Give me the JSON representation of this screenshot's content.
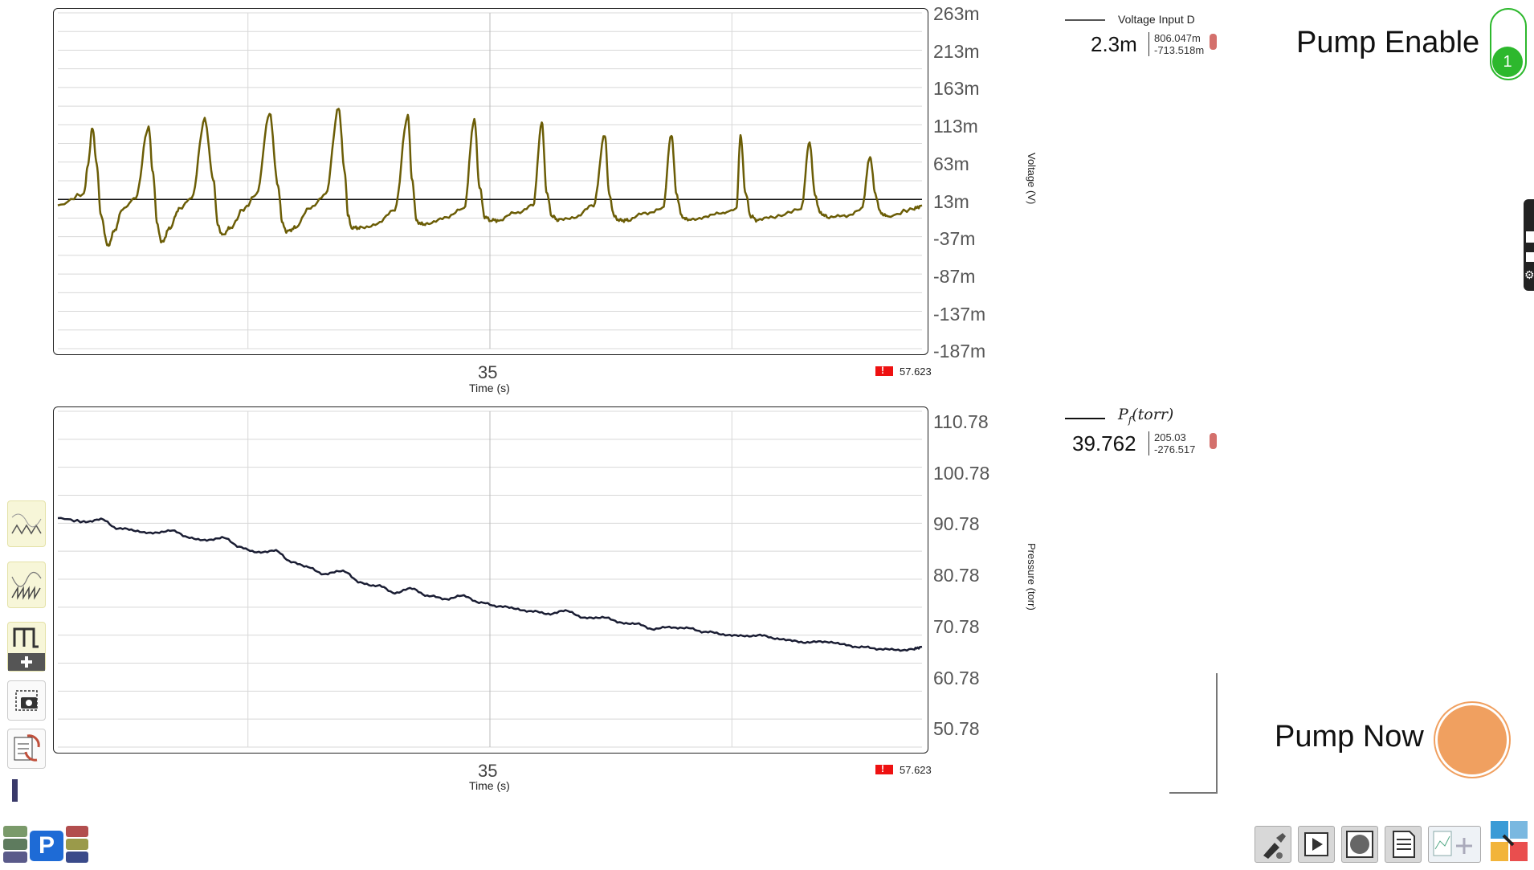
{
  "chart_data": [
    {
      "type": "line",
      "title": "",
      "xlabel": "Time (s)",
      "ylabel": "Voltage (V)",
      "x_tick_labels": [
        "35"
      ],
      "y_tick_labels": [
        "263m",
        "213m",
        "163m",
        "113m",
        "63m",
        "13m",
        "-37m",
        "-87m",
        "-137m",
        "-187m"
      ],
      "ylim": [
        -0.187,
        0.263
      ],
      "grid": true,
      "series": [
        {
          "name": "Voltage Input D",
          "color": "#6b5d06",
          "x": [
            0.0,
            0.03,
            0.035,
            0.04,
            0.045,
            0.05,
            0.058,
            0.065,
            0.075,
            0.09,
            0.105,
            0.11,
            0.115,
            0.12,
            0.13,
            0.14,
            0.155,
            0.17,
            0.18,
            0.185,
            0.19,
            0.2,
            0.215,
            0.23,
            0.245,
            0.255,
            0.26,
            0.265,
            0.275,
            0.29,
            0.31,
            0.325,
            0.332,
            0.336,
            0.34,
            0.35,
            0.37,
            0.39,
            0.405,
            0.41,
            0.415,
            0.42,
            0.43,
            0.45,
            0.47,
            0.482,
            0.488,
            0.494,
            0.5,
            0.51,
            0.53,
            0.55,
            0.56,
            0.566,
            0.572,
            0.58,
            0.6,
            0.62,
            0.633,
            0.638,
            0.644,
            0.65,
            0.66,
            0.68,
            0.7,
            0.71,
            0.716,
            0.722,
            0.73,
            0.75,
            0.77,
            0.785,
            0.79,
            0.796,
            0.802,
            0.81,
            0.83,
            0.86,
            0.87,
            0.876,
            0.882,
            0.89,
            0.91,
            0.93,
            0.94,
            0.946,
            0.952,
            0.96,
            0.99,
            1.0
          ],
          "y": [
            0.005,
            0.02,
            0.06,
            0.11,
            0.06,
            -0.01,
            -0.05,
            -0.03,
            0.0,
            0.015,
            0.11,
            0.05,
            -0.02,
            -0.045,
            -0.025,
            0.0,
            0.015,
            0.12,
            0.04,
            -0.02,
            -0.035,
            -0.025,
            0.0,
            0.02,
            0.128,
            0.03,
            -0.02,
            -0.03,
            -0.025,
            0.0,
            0.02,
            0.135,
            0.05,
            -0.01,
            -0.025,
            -0.025,
            -0.02,
            0.0,
            0.125,
            0.04,
            -0.015,
            -0.02,
            -0.02,
            -0.01,
            0.0,
            0.12,
            0.03,
            -0.01,
            -0.015,
            -0.015,
            -0.005,
            0.005,
            0.115,
            0.02,
            -0.01,
            -0.015,
            -0.01,
            0.005,
            0.1,
            0.02,
            -0.01,
            -0.015,
            -0.015,
            -0.005,
            0.0,
            0.1,
            0.02,
            -0.01,
            -0.015,
            -0.01,
            -0.005,
            0.0,
            0.097,
            0.02,
            -0.01,
            -0.015,
            -0.01,
            0.0,
            0.09,
            0.02,
            -0.005,
            -0.01,
            -0.01,
            0.0,
            0.07,
            0.02,
            -0.005,
            -0.01,
            0.0,
            0.005
          ],
          "baseline": 0.013
        }
      ]
    },
    {
      "type": "line",
      "title": "",
      "xlabel": "Time (s)",
      "ylabel": "Pressure (torr)",
      "x_tick_labels": [
        "35"
      ],
      "y_tick_labels": [
        "110.78",
        "100.78",
        "90.78",
        "80.78",
        "70.78",
        "60.78",
        "50.78"
      ],
      "ylim": [
        45.78,
        115.78
      ],
      "grid": true,
      "series": [
        {
          "name": "P_f(torr)",
          "color": "#1a1d33",
          "x": [
            0.0,
            0.03,
            0.05,
            0.07,
            0.09,
            0.11,
            0.13,
            0.15,
            0.17,
            0.19,
            0.21,
            0.23,
            0.25,
            0.27,
            0.29,
            0.31,
            0.33,
            0.35,
            0.37,
            0.39,
            0.41,
            0.43,
            0.45,
            0.47,
            0.49,
            0.51,
            0.53,
            0.55,
            0.57,
            0.59,
            0.61,
            0.63,
            0.65,
            0.67,
            0.69,
            0.71,
            0.73,
            0.75,
            0.77,
            0.79,
            0.81,
            0.83,
            0.85,
            0.87,
            0.89,
            0.91,
            0.93,
            0.95,
            0.97,
            0.99,
            1.0
          ],
          "y": [
            93.5,
            92.8,
            93.2,
            91.4,
            90.9,
            90.3,
            91.0,
            89.6,
            88.8,
            89.5,
            87.6,
            86.3,
            86.8,
            84.5,
            83.2,
            81.8,
            82.6,
            80.0,
            79.4,
            78.0,
            78.8,
            77.2,
            76.7,
            77.3,
            75.8,
            75.2,
            74.6,
            74.0,
            73.6,
            74.2,
            72.6,
            72.9,
            71.8,
            71.4,
            70.4,
            70.8,
            70.5,
            69.8,
            69.3,
            68.9,
            69.1,
            68.5,
            67.9,
            67.6,
            67.8,
            67.1,
            66.6,
            66.3,
            66.0,
            66.2,
            66.7
          ]
        }
      ]
    }
  ],
  "charts": {
    "voltage": {
      "x_tick": "35",
      "xlabel": "Time (s)",
      "ylabel": "Voltage (V)",
      "marker_value": "57.623",
      "yticks": [
        "263m",
        "213m",
        "163m",
        "113m",
        "63m",
        "13m",
        "-37m",
        "-87m",
        "-137m",
        "-187m"
      ]
    },
    "pressure": {
      "x_tick": "35",
      "xlabel": "Time (s)",
      "ylabel": "Pressure (torr)",
      "marker_value": "57.623",
      "yticks": [
        "110.78",
        "100.78",
        "90.78",
        "80.78",
        "70.78",
        "60.78",
        "50.78"
      ]
    }
  },
  "legend": {
    "voltage": {
      "name": "Voltage Input D",
      "value": "2.3m",
      "max": "806.047m",
      "min": "-713.518m"
    },
    "pressure": {
      "name_main": "P",
      "name_sub": "f",
      "name_unit": "(torr)",
      "value": "39.762",
      "max": "205.03",
      "min": "-276.517"
    }
  },
  "controls": {
    "pump_enable_label": "Pump Enable",
    "pump_enable_state": "1",
    "pump_now_label": "Pump Now",
    "colors": {
      "enable": "#2db82d",
      "pump_now": "#f0a060"
    }
  },
  "toolbar": {
    "left_icons": [
      "waveform-overlay-icon",
      "waveform-icon",
      "add-square-wave-icon",
      "screenshot-icon",
      "refresh-document-icon"
    ],
    "bottom_icons": [
      "probe-icon",
      "play-icon",
      "record-icon",
      "document-icon",
      "add-chart-icon",
      "puzzle-icon"
    ]
  }
}
